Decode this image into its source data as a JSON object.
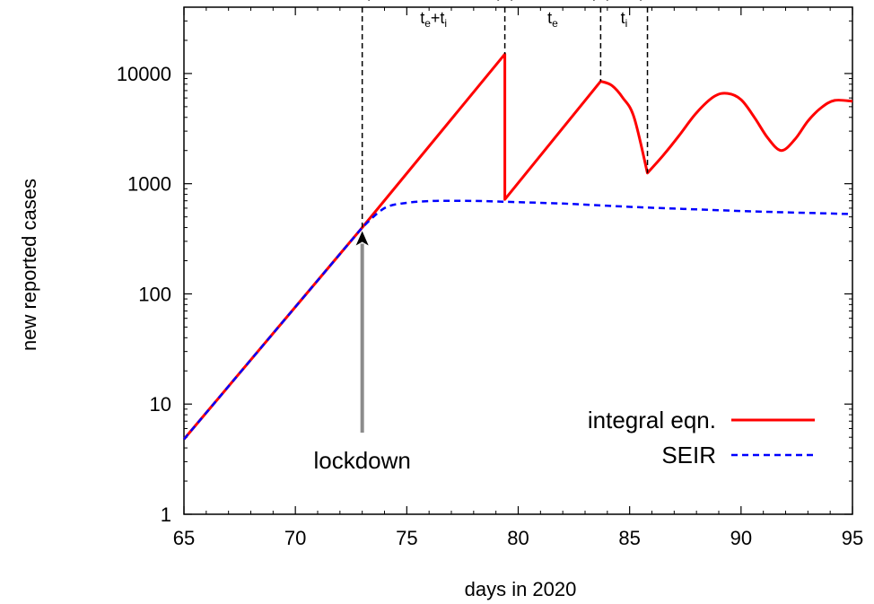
{
  "chart_data": {
    "type": "line",
    "xlabel": "days in 2020",
    "ylabel": "new reported cases",
    "xlim": [
      65,
      95
    ],
    "ylim": [
      1,
      40000
    ],
    "yscale": "log",
    "x_ticks": [
      "65",
      "70",
      "75",
      "80",
      "85",
      "90",
      "95"
    ],
    "y_ticks": [
      "1",
      "10",
      "100",
      "1000",
      "10000"
    ],
    "grid": false,
    "legend_position": "bottom-right",
    "series": [
      {
        "name": "integral eqn.",
        "color": "#ff0000",
        "style": "solid",
        "x": [
          65,
          73,
          79.4,
          79.4,
          83.7,
          84.2,
          84.7,
          85.2,
          85.8,
          86.5,
          87.2,
          88,
          88.8,
          89.4,
          90,
          90.6,
          91.2,
          91.8,
          92.4,
          93,
          93.6,
          94.2,
          95
        ],
        "y": [
          4.8,
          400,
          15000,
          720,
          8500,
          7800,
          6000,
          4000,
          1250,
          1800,
          2700,
          4400,
          6200,
          6600,
          5800,
          4000,
          2600,
          2000,
          2500,
          3700,
          4900,
          5700,
          5600
        ]
      },
      {
        "name": "SEIR",
        "color": "#0000ff",
        "style": "dashed",
        "x": [
          65,
          73,
          74,
          75,
          76,
          77,
          78,
          79,
          80,
          82,
          84,
          86,
          88,
          90,
          92,
          95
        ],
        "y": [
          4.8,
          400,
          600,
          670,
          695,
          700,
          698,
          690,
          680,
          660,
          630,
          605,
          585,
          565,
          550,
          530
        ]
      }
    ],
    "annotations": {
      "lockdown_label": "lockdown",
      "lockdown_x": 73,
      "lockdown_arrow_to": 400,
      "lockdown_arrow_from": 5.5,
      "interval_y": 50000,
      "intervals": [
        {
          "from": 73,
          "to": 79.4,
          "main": "t",
          "sub1": "e",
          "plus": "+t",
          "sub2": "i"
        },
        {
          "from": 79.4,
          "to": 83.7,
          "main": "t",
          "sub1": "e",
          "plus": "",
          "sub2": ""
        },
        {
          "from": 83.7,
          "to": 85.8,
          "main": "t",
          "sub1": "i",
          "plus": "",
          "sub2": ""
        }
      ]
    }
  }
}
